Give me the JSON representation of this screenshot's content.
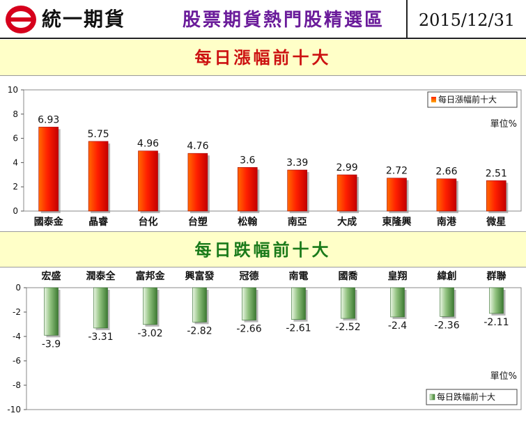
{
  "header": {
    "logo_text": "統一期貨",
    "title": "股票期貨熱門股精選區",
    "date": "2015/12/31"
  },
  "gainers": {
    "band_title": "每日漲幅前十大",
    "legend": "每日漲幅前十大",
    "unit_label": "單位%"
  },
  "losers": {
    "band_title": "每日跌幅前十大",
    "legend": "每日跌幅前十大",
    "unit_label": "單位%"
  },
  "colors": {
    "gain_bar_top": "#ff2a00",
    "gain_bar_mid": "#ff7a00",
    "loss_bar": "#5a9a4a",
    "loss_bar_light": "#e6f5e0"
  },
  "chart_data": [
    {
      "type": "bar",
      "title": "每日漲幅前十大",
      "categories": [
        "國泰金",
        "晶睿",
        "台化",
        "台塑",
        "松翰",
        "南亞",
        "大成",
        "東隆興",
        "南港",
        "微星"
      ],
      "values": [
        6.93,
        5.75,
        4.96,
        4.76,
        3.6,
        3.39,
        2.99,
        2.72,
        2.66,
        2.51
      ],
      "ylim": [
        0,
        10
      ],
      "yticks": [
        0,
        2,
        4,
        6,
        8,
        10
      ],
      "legend_position": "top-right",
      "series": [
        {
          "name": "每日漲幅前十大",
          "values": [
            6.93,
            5.75,
            4.96,
            4.76,
            3.6,
            3.39,
            2.99,
            2.72,
            2.66,
            2.51
          ]
        }
      ]
    },
    {
      "type": "bar",
      "title": "每日跌幅前十大",
      "categories": [
        "宏盛",
        "潤泰全",
        "富邦金",
        "興富發",
        "冠德",
        "南電",
        "國喬",
        "皇翔",
        "緯創",
        "群聯"
      ],
      "values": [
        -3.9,
        -3.31,
        -3.02,
        -2.82,
        -2.66,
        -2.61,
        -2.52,
        -2.4,
        -2.36,
        -2.11
      ],
      "ylim": [
        -10,
        0
      ],
      "yticks": [
        0,
        -2,
        -4,
        -6,
        -8,
        -10
      ],
      "legend_position": "bottom-right",
      "series": [
        {
          "name": "每日跌幅前十大",
          "values": [
            -3.9,
            -3.31,
            -3.02,
            -2.82,
            -2.66,
            -2.61,
            -2.52,
            -2.4,
            -2.36,
            -2.11
          ]
        }
      ]
    }
  ]
}
